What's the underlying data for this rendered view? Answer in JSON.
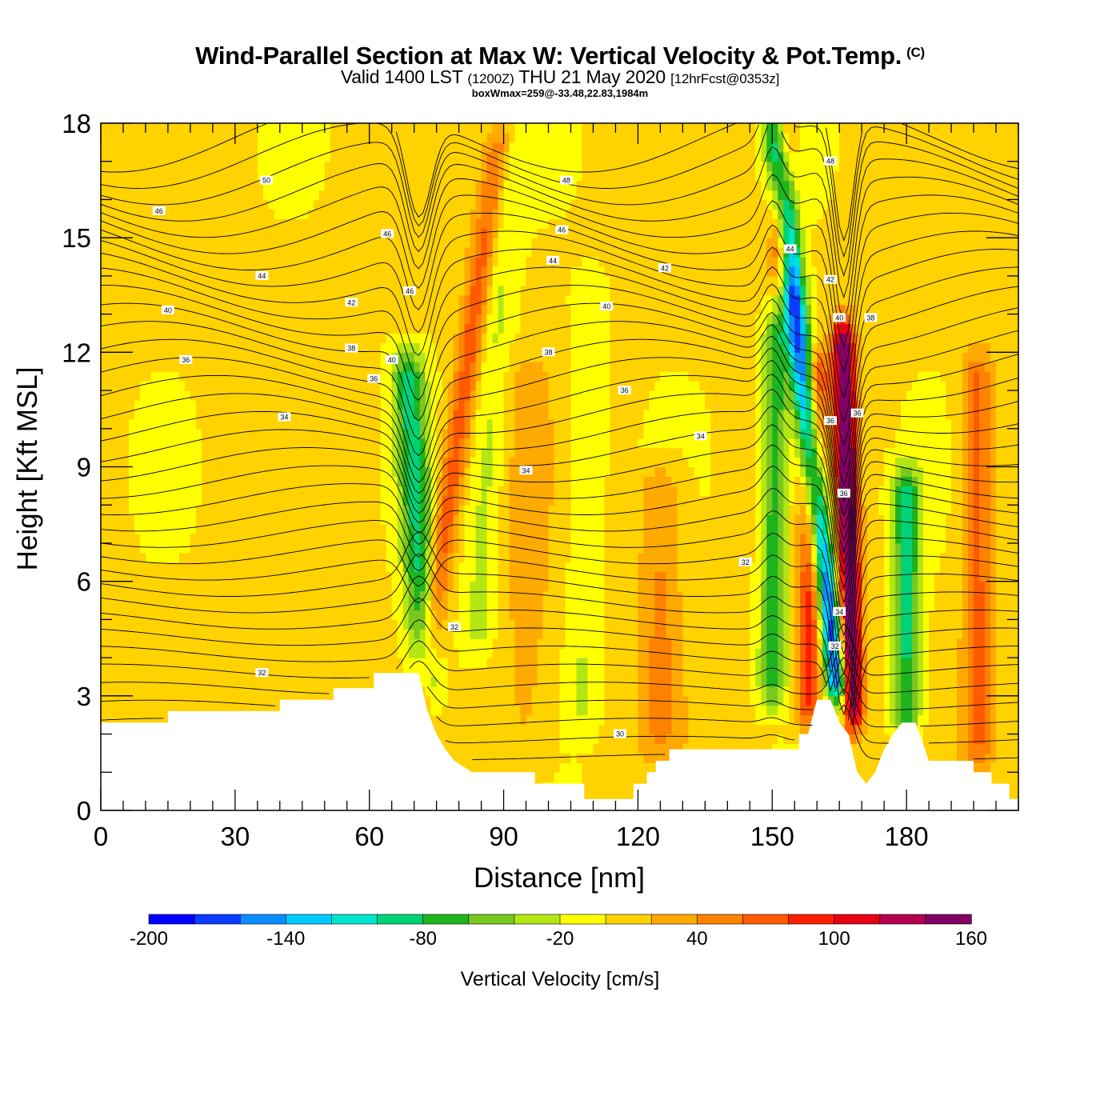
{
  "title": {
    "line1": "Wind-Parallel Section at Max W: Vertical Velocity & Pot.Temp.",
    "copyright": "(C)",
    "line2_main": "Valid 1400 LST",
    "line2_utc": "(1200Z)",
    "line2_date": "THU 21 May 2020",
    "line2_fcst": "[12hrFcst@0353z]",
    "line3": "boxWmax=259@-33.48,22.83,1984m"
  },
  "colors": {
    "background": "#ffffff",
    "terrain": "#ffffff",
    "contour": "#000000",
    "colorbar": [
      "#0000ff",
      "#0a3cff",
      "#0a8cff",
      "#00ccff",
      "#00e6cc",
      "#00d278",
      "#1eb41e",
      "#78c81e",
      "#b4e614",
      "#ffff00",
      "#ffd200",
      "#ffaa00",
      "#ff8200",
      "#ff5a00",
      "#ff1e00",
      "#e60014",
      "#b40050",
      "#820064"
    ]
  },
  "chart_data": {
    "type": "heatmap",
    "title": "Wind-Parallel Section at Max W: Vertical Velocity & Pot.Temp.",
    "xlabel": "Distance [nm]",
    "ylabel": "Height [Kft MSL]",
    "xlim": [
      0,
      205
    ],
    "ylim": [
      0,
      18
    ],
    "x_ticks": [
      "0",
      "30",
      "60",
      "90",
      "120",
      "150",
      "180"
    ],
    "y_ticks": [
      "0",
      "3",
      "6",
      "9",
      "12",
      "15",
      "18"
    ],
    "colorbar": {
      "title": "Vertical Velocity [cm/s]",
      "min": -200,
      "max": 160,
      "step": 20,
      "labels": [
        "-200",
        "-140",
        "-80",
        "-20",
        "40",
        "100",
        "160"
      ]
    },
    "terrain_profile": [
      [
        0,
        2.3
      ],
      [
        15,
        2.3
      ],
      [
        15,
        2.6
      ],
      [
        40,
        2.6
      ],
      [
        40,
        2.9
      ],
      [
        52,
        2.9
      ],
      [
        52,
        3.2
      ],
      [
        61,
        3.2
      ],
      [
        61,
        3.6
      ],
      [
        71,
        3.6
      ],
      [
        73,
        2.6
      ],
      [
        75,
        2.0
      ],
      [
        77,
        1.6
      ],
      [
        79,
        1.3
      ],
      [
        83,
        1.0
      ],
      [
        97,
        1.0
      ],
      [
        97,
        0.7
      ],
      [
        108,
        0.7
      ],
      [
        108,
        0.3
      ],
      [
        119,
        0.3
      ],
      [
        119,
        0.7
      ],
      [
        122,
        0.7
      ],
      [
        122,
        1.0
      ],
      [
        124,
        1.0
      ],
      [
        124,
        1.3
      ],
      [
        127,
        1.3
      ],
      [
        127,
        1.6
      ],
      [
        156,
        1.6
      ],
      [
        156,
        2.0
      ],
      [
        158,
        2.0
      ],
      [
        160,
        2.9
      ],
      [
        163,
        2.9
      ],
      [
        165,
        2.3
      ],
      [
        167,
        2.0
      ],
      [
        169,
        1.0
      ],
      [
        171,
        0.7
      ],
      [
        173,
        1.0
      ],
      [
        175,
        1.6
      ],
      [
        177,
        2.0
      ],
      [
        179,
        2.3
      ],
      [
        182,
        2.3
      ],
      [
        183,
        2.0
      ],
      [
        185,
        1.3
      ],
      [
        195,
        1.3
      ],
      [
        195,
        1.0
      ],
      [
        199,
        1.0
      ],
      [
        199,
        0.7
      ],
      [
        203,
        0.7
      ],
      [
        203,
        0.3
      ],
      [
        205,
        0.3
      ]
    ],
    "vertical_velocity_features": [
      {
        "x": 71,
        "z0": 2.5,
        "z1": 18,
        "w": 70,
        "width": 3,
        "lean": 1.2
      },
      {
        "x": 73,
        "z0": 2.8,
        "z1": 12,
        "w": -90,
        "width": 3.5,
        "lean": -0.5
      },
      {
        "x": 84,
        "z0": 4,
        "z1": 18,
        "w": -30,
        "width": 4,
        "lean": 0.5
      },
      {
        "x": 95,
        "z0": 1,
        "z1": 12,
        "w": 20,
        "width": 6,
        "lean": 0
      },
      {
        "x": 107,
        "z0": 2,
        "z1": 14,
        "w": -25,
        "width": 4,
        "lean": 0.2
      },
      {
        "x": 125,
        "z0": 1.5,
        "z1": 9,
        "w": 40,
        "width": 5,
        "lean": 0
      },
      {
        "x": 150,
        "z0": 2.8,
        "z1": 13,
        "w": -80,
        "width": 3,
        "lean": 0.1
      },
      {
        "x": 152,
        "z0": 14,
        "z1": 18,
        "w": 110,
        "width": 2.5,
        "lean": 0
      },
      {
        "x": 158,
        "z0": 2.2,
        "z1": 12,
        "w": 90,
        "width": 2.8,
        "lean": 0.2
      },
      {
        "x": 165,
        "z0": 2.8,
        "z1": 18,
        "w": -180,
        "width": 2.6,
        "lean": -0.95
      },
      {
        "x": 168,
        "z0": 2.2,
        "z1": 12.8,
        "w": 175,
        "width": 2.4,
        "lean": -0.2
      },
      {
        "x": 180,
        "z0": 1.8,
        "z1": 9,
        "w": -90,
        "width": 3,
        "lean": 0
      },
      {
        "x": 196,
        "z0": 1.2,
        "z1": 12,
        "w": 60,
        "width": 3.5,
        "lean": 0
      }
    ],
    "theta_contours": [
      {
        "label": "30",
        "x": 116,
        "z": 2.0
      },
      {
        "label": "32",
        "x": 36,
        "z": 3.6
      },
      {
        "label": "32",
        "x": 79,
        "z": 4.8
      },
      {
        "label": "32",
        "x": 144,
        "z": 6.5
      },
      {
        "label": "32",
        "x": 164,
        "z": 4.3
      },
      {
        "label": "34",
        "x": 41,
        "z": 10.3
      },
      {
        "label": "34",
        "x": 95,
        "z": 8.9
      },
      {
        "label": "34",
        "x": 134,
        "z": 9.8
      },
      {
        "label": "34",
        "x": 165,
        "z": 5.2
      },
      {
        "label": "36",
        "x": 19,
        "z": 11.8
      },
      {
        "label": "36",
        "x": 61,
        "z": 11.3
      },
      {
        "label": "36",
        "x": 117,
        "z": 11.0
      },
      {
        "label": "36",
        "x": 163,
        "z": 10.2
      },
      {
        "label": "36",
        "x": 166,
        "z": 8.3
      },
      {
        "label": "36",
        "x": 169,
        "z": 10.4
      },
      {
        "label": "38",
        "x": 56,
        "z": 12.1
      },
      {
        "label": "38",
        "x": 100,
        "z": 12.0
      },
      {
        "label": "38",
        "x": 172,
        "z": 12.9
      },
      {
        "label": "40",
        "x": 15,
        "z": 13.1
      },
      {
        "label": "40",
        "x": 65,
        "z": 11.8
      },
      {
        "label": "40",
        "x": 113,
        "z": 13.2
      },
      {
        "label": "40",
        "x": 165,
        "z": 12.9
      },
      {
        "label": "42",
        "x": 56,
        "z": 13.3
      },
      {
        "label": "42",
        "x": 126,
        "z": 14.2
      },
      {
        "label": "42",
        "x": 163,
        "z": 13.9
      },
      {
        "label": "44",
        "x": 36,
        "z": 14.0
      },
      {
        "label": "44",
        "x": 101,
        "z": 14.4
      },
      {
        "label": "44",
        "x": 154,
        "z": 14.7
      },
      {
        "label": "46",
        "x": 13,
        "z": 15.7
      },
      {
        "label": "46",
        "x": 69,
        "z": 13.6
      },
      {
        "label": "46",
        "x": 103,
        "z": 15.2
      },
      {
        "label": "46",
        "x": 64,
        "z": 15.1
      },
      {
        "label": "48",
        "x": 104,
        "z": 16.5
      },
      {
        "label": "48",
        "x": 163,
        "z": 17.0
      },
      {
        "label": "50",
        "x": 37,
        "z": 16.5
      }
    ]
  }
}
